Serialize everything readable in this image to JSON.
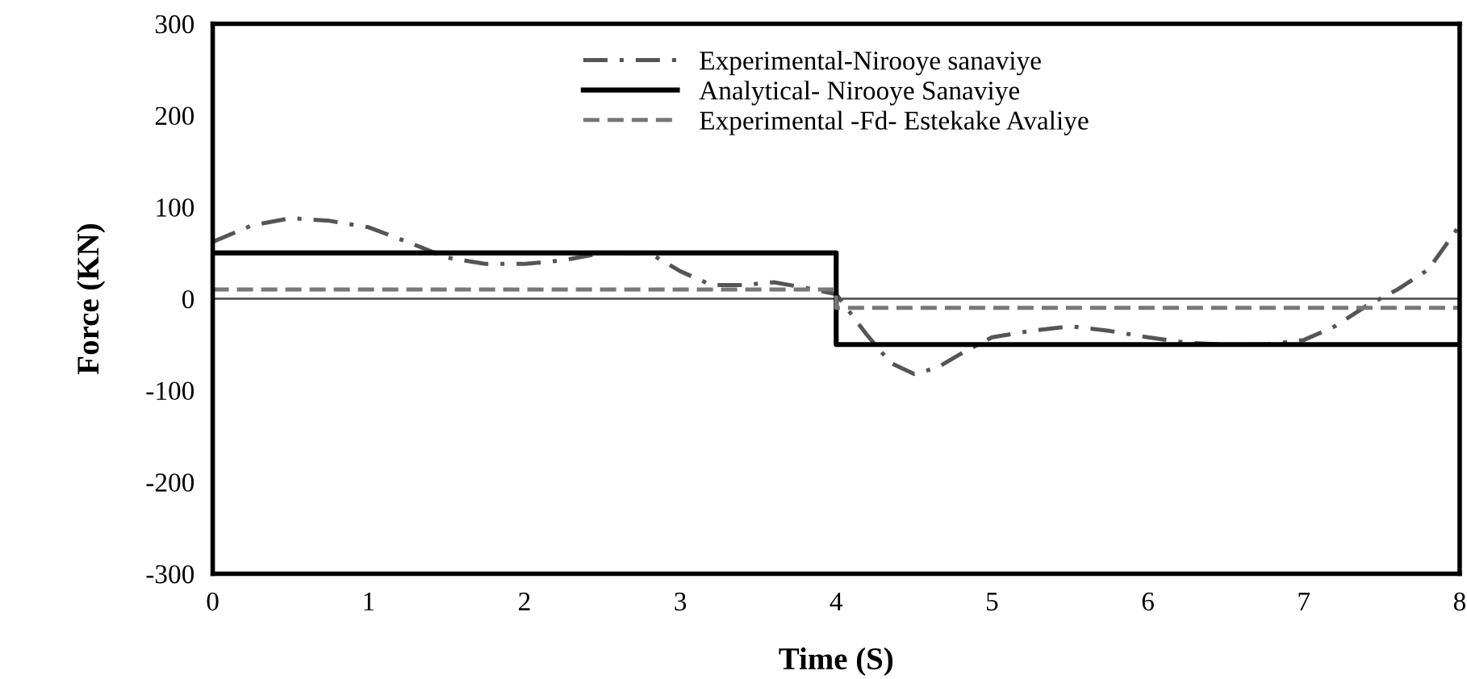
{
  "chart_data": {
    "type": "line",
    "xlabel": "Time (S)",
    "ylabel": "Force (KN)",
    "xlim": [
      0,
      8
    ],
    "xticks": [
      0,
      1,
      2,
      3,
      4,
      5,
      6,
      7,
      8
    ],
    "ylim": [
      -300,
      300
    ],
    "yticks": [
      -300,
      -200,
      -100,
      0,
      100,
      200,
      300
    ],
    "grid": false,
    "legend": "top",
    "marker": "none",
    "ref_lines": [
      {
        "axis": "y",
        "value": 0,
        "color": "#555555",
        "line_style": "solid"
      }
    ],
    "series": [
      {
        "name": "Experimental-Nirooye sanaviye",
        "color": "#555555",
        "line_style": "dashdot",
        "x": [
          0,
          0.25,
          0.5,
          0.75,
          1,
          1.25,
          1.5,
          1.75,
          2,
          2.25,
          2.5,
          2.8,
          3.0,
          3.2,
          3.4,
          3.6,
          3.8,
          4.0,
          4.2,
          4.35,
          4.5,
          4.65,
          4.8,
          5.0,
          5.25,
          5.5,
          5.75,
          6.0,
          6.25,
          6.5,
          6.75,
          7.0,
          7.2,
          7.4,
          7.6,
          7.8,
          8.0
        ],
        "values": [
          62,
          80,
          88,
          85,
          78,
          62,
          45,
          38,
          38,
          42,
          50,
          50,
          30,
          15,
          15,
          18,
          12,
          5,
          -40,
          -70,
          -82,
          -75,
          -60,
          -42,
          -35,
          -30,
          -35,
          -42,
          -48,
          -50,
          -50,
          -45,
          -30,
          -8,
          10,
          32,
          80
        ]
      },
      {
        "name": "Analytical- Nirooye Sanaviye",
        "color": "#000000",
        "line_style": "solid",
        "x": [
          0,
          4,
          4,
          8
        ],
        "values": [
          50,
          50,
          -50,
          -50
        ]
      },
      {
        "name": "Experimental -Fd- Estekake Avaliye",
        "color": "#777777",
        "line_style": "dashed",
        "x": [
          0,
          4,
          4,
          8
        ],
        "values": [
          10,
          10,
          -10,
          -10
        ]
      }
    ]
  }
}
